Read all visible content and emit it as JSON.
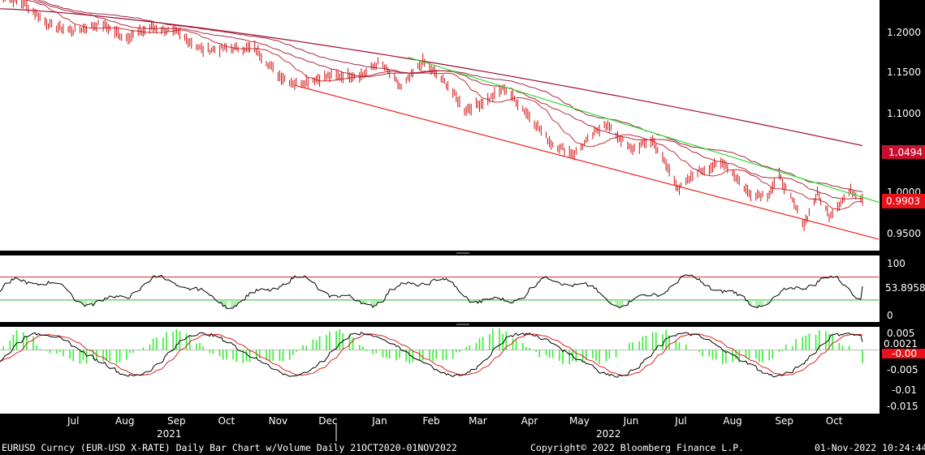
{
  "colors": {
    "background": "#ffffff",
    "axis_background": "#000000",
    "price_bars": "#d01010",
    "ma_long": "#a01030",
    "trend_upper": "#33dd33",
    "trend_lower": "#ee2222",
    "rsi_line": "#000000",
    "rsi_upper": "#dd2222",
    "rsi_lower": "#22bb22",
    "macd_pos": "#33ee33",
    "macd_neg": "#33ee33",
    "badge_ma": "#c8102e",
    "badge_price": "#e8121a"
  },
  "chart_data": [
    {
      "type": "bar",
      "panel": "price",
      "instrument": "EURUSD Curncy (EUR-USD X-RATE)",
      "y_ticks": [
        "1.2000",
        "1.1500",
        "1.1000",
        "1.0494",
        "1.0000",
        "0.9903",
        "0.9500"
      ],
      "ylim": [
        0.93,
        1.215
      ],
      "x_months": [
        "Jul",
        "Aug",
        "Sep",
        "Oct",
        "Nov",
        "Dec",
        "Jan",
        "Feb",
        "Mar",
        "Apr",
        "May",
        "Jun",
        "Jul",
        "Aug",
        "Sep",
        "Oct"
      ],
      "x_years": [
        "2021",
        "2022"
      ],
      "last_price": 0.9903,
      "ma_200_last": 1.0494,
      "trend_channel": {
        "upper": {
          "from": [
            "Feb-2022",
            1.15
          ],
          "to": [
            "Nov-2022",
            0.985
          ]
        },
        "lower": {
          "from": [
            "Nov-2021",
            1.118
          ],
          "to": [
            "Nov-2022",
            0.943
          ]
        }
      },
      "close_path": [
        [
          "2021-06-01",
          1.22
        ],
        [
          "2021-06-15",
          1.212
        ],
        [
          "2021-07-01",
          1.186
        ],
        [
          "2021-07-15",
          1.18
        ],
        [
          "2021-08-01",
          1.188
        ],
        [
          "2021-08-15",
          1.172
        ],
        [
          "2021-09-01",
          1.184
        ],
        [
          "2021-09-15",
          1.178
        ],
        [
          "2021-10-01",
          1.158
        ],
        [
          "2021-10-15",
          1.16
        ],
        [
          "2021-11-01",
          1.16
        ],
        [
          "2021-11-15",
          1.13
        ],
        [
          "2021-11-25",
          1.12
        ],
        [
          "2021-12-15",
          1.128
        ],
        [
          "2022-01-05",
          1.13
        ],
        [
          "2022-01-15",
          1.145
        ],
        [
          "2022-01-28",
          1.115
        ],
        [
          "2022-02-10",
          1.145
        ],
        [
          "2022-02-25",
          1.118
        ],
        [
          "2022-03-07",
          1.09
        ],
        [
          "2022-03-20",
          1.1
        ],
        [
          "2022-03-31",
          1.115
        ],
        [
          "2022-04-15",
          1.083
        ],
        [
          "2022-04-28",
          1.052
        ],
        [
          "2022-05-12",
          1.04
        ],
        [
          "2022-05-30",
          1.075
        ],
        [
          "2022-06-15",
          1.045
        ],
        [
          "2022-06-28",
          1.055
        ],
        [
          "2022-07-14",
          1.0
        ],
        [
          "2022-07-25",
          1.02
        ],
        [
          "2022-08-10",
          1.03
        ],
        [
          "2022-08-25",
          0.995
        ],
        [
          "2022-09-05",
          0.993
        ],
        [
          "2022-09-12",
          1.015
        ],
        [
          "2022-09-27",
          0.96
        ],
        [
          "2022-10-05",
          0.995
        ],
        [
          "2022-10-12",
          0.97
        ],
        [
          "2022-10-25",
          0.998
        ],
        [
          "2022-11-01",
          0.99
        ]
      ]
    },
    {
      "type": "line",
      "panel": "rsi",
      "y_ticks": [
        "100",
        "53.8958",
        "0"
      ],
      "ylim": [
        0,
        100
      ],
      "upper_band": 70,
      "lower_band": 30,
      "last_value": 53.8958
    },
    {
      "type": "bar",
      "panel": "macd",
      "y_ticks": [
        "0.005",
        "0.0021",
        "-0.00",
        "-0.005",
        "-0.01",
        "-0.015"
      ],
      "ylim": [
        -0.0165,
        0.006
      ],
      "last_value": 0.0021,
      "signal_last": -0.0002
    }
  ],
  "footer": {
    "left": "EURUSD Curncy (EUR-USD X-RATE) Daily Bar Chart w/Volume  Daily 21OCT2020-01NOV2022",
    "center": "Copyright© 2022 Bloomberg Finance L.P.",
    "right": "01-Nov-2022 10:24:44"
  }
}
